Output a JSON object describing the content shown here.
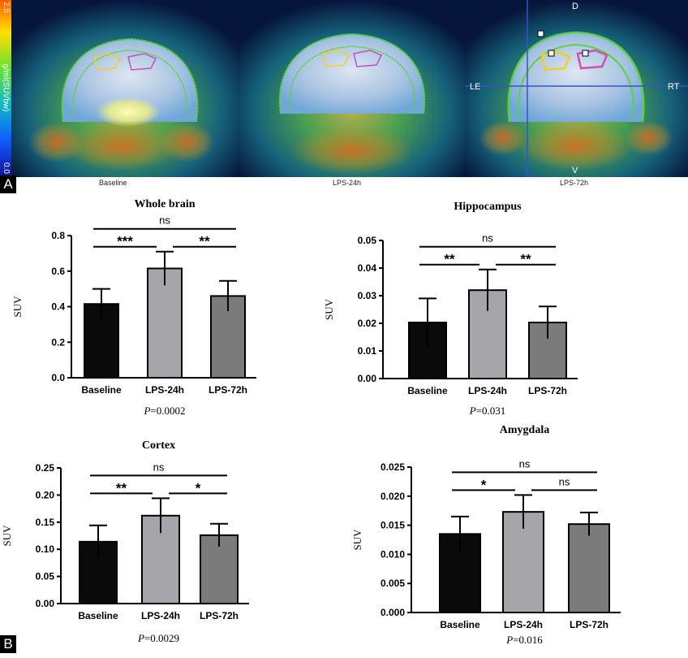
{
  "panel_a": {
    "letter": "A",
    "scale_max": "2.5",
    "scale_min": "0.0",
    "scale_unit": "g/ml(SUVbw)",
    "images": [
      {
        "label": "Baseline"
      },
      {
        "label": "LPS-24h"
      },
      {
        "label": "LPS-72h",
        "orientation": {
          "top": "D",
          "bottom": "V",
          "left": "LE",
          "right": "RT"
        }
      }
    ]
  },
  "panel_b": {
    "letter": "B"
  },
  "chart_data": [
    {
      "type": "bar",
      "title": "Whole brain",
      "ylabel": "SUV",
      "categories": [
        "Baseline",
        "LPS-24h",
        "LPS-72h"
      ],
      "values": [
        0.415,
        0.615,
        0.46
      ],
      "errors": [
        0.085,
        0.095,
        0.085
      ],
      "bar_colors": [
        "#0a0a0a",
        "#a5a5aa",
        "#7b7b7b"
      ],
      "ylim": [
        0,
        0.8
      ],
      "yticks": [
        "0.0",
        "0.2",
        "0.4",
        "0.6",
        "0.8"
      ],
      "p_value": "=0.0002",
      "comparisons": [
        {
          "from": 0,
          "to": 1,
          "label": "***"
        },
        {
          "from": 1,
          "to": 2,
          "label": "**"
        },
        {
          "from": 0,
          "to": 2,
          "label": "ns"
        }
      ]
    },
    {
      "type": "bar",
      "title": "Hippocampus",
      "ylabel": "SUV",
      "categories": [
        "Baseline",
        "LPS-24h",
        "LPS-72h"
      ],
      "values": [
        0.0203,
        0.032,
        0.0203
      ],
      "errors": [
        0.0087,
        0.0075,
        0.0058
      ],
      "bar_colors": [
        "#0a0a0a",
        "#a5a5aa",
        "#7b7b7b"
      ],
      "ylim": [
        0,
        0.05
      ],
      "yticks": [
        "0.00",
        "0.01",
        "0.02",
        "0.03",
        "0.04",
        "0.05"
      ],
      "p_value": "=0.031",
      "comparisons": [
        {
          "from": 0,
          "to": 1,
          "label": "**"
        },
        {
          "from": 1,
          "to": 2,
          "label": "**"
        },
        {
          "from": 0,
          "to": 2,
          "label": "ns"
        }
      ]
    },
    {
      "type": "bar",
      "title": "Cortex",
      "ylabel": "SUV",
      "categories": [
        "Baseline",
        "LPS-24h",
        "LPS-72h"
      ],
      "values": [
        0.114,
        0.162,
        0.126
      ],
      "errors": [
        0.03,
        0.032,
        0.021
      ],
      "bar_colors": [
        "#0a0a0a",
        "#a5a5aa",
        "#7b7b7b"
      ],
      "ylim": [
        0,
        0.25
      ],
      "yticks": [
        "0.00",
        "0.05",
        "0.10",
        "0.15",
        "0.20",
        "0.25"
      ],
      "p_value": "=0.0029",
      "comparisons": [
        {
          "from": 0,
          "to": 1,
          "label": "**"
        },
        {
          "from": 1,
          "to": 2,
          "label": "*"
        },
        {
          "from": 0,
          "to": 2,
          "label": "ns"
        }
      ]
    },
    {
      "type": "bar",
      "title": "Amygdala",
      "ylabel": "SUV",
      "categories": [
        "Baseline",
        "LPS-24h",
        "LPS-72h"
      ],
      "values": [
        0.0135,
        0.0173,
        0.0152
      ],
      "errors": [
        0.003,
        0.0029,
        0.002
      ],
      "bar_colors": [
        "#0a0a0a",
        "#a5a5aa",
        "#7b7b7b"
      ],
      "ylim": [
        0,
        0.025
      ],
      "yticks": [
        "0.000",
        "0.005",
        "0.010",
        "0.015",
        "0.020",
        "0.025"
      ],
      "p_value": "=0.016",
      "comparisons": [
        {
          "from": 0,
          "to": 1,
          "label": "*"
        },
        {
          "from": 1,
          "to": 2,
          "label": "ns"
        },
        {
          "from": 0,
          "to": 2,
          "label": "ns"
        }
      ]
    }
  ]
}
